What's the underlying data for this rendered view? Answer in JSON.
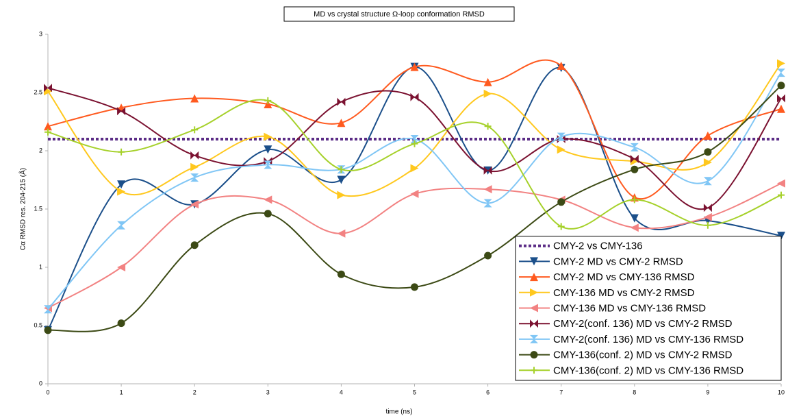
{
  "chart_data": {
    "type": "line",
    "smooth": true,
    "title": "MD vs crystal structure Ω-loop conformation RMSD",
    "xlabel": "time (ns)",
    "ylabel": "Cα RMSD res. 204-215 (Å)",
    "x": [
      0,
      1,
      2,
      3,
      4,
      5,
      6,
      7,
      8,
      9,
      10
    ],
    "xlim": [
      0,
      10
    ],
    "xticks": [
      0,
      1,
      2,
      3,
      4,
      5,
      6,
      7,
      8,
      9,
      10
    ],
    "ylim": [
      0,
      3
    ],
    "yticks": [
      0,
      0.5,
      1,
      1.5,
      2,
      2.5,
      3
    ],
    "grid": false,
    "legend": "lower right",
    "series": [
      {
        "name": "CMY-2 vs CMY-136",
        "color": "#5b2c86",
        "line_style": "dotted",
        "marker": "none",
        "values": [
          2.1,
          2.1,
          2.1,
          2.1,
          2.1,
          2.1,
          2.1,
          2.1,
          2.1,
          2.1,
          2.1
        ]
      },
      {
        "name": "CMY-2 MD vs CMY-2 RMSD",
        "color": "#1b4f8a",
        "line_style": "solid",
        "marker": "triangle-down",
        "values": [
          0.46,
          1.71,
          1.54,
          2.01,
          1.75,
          2.72,
          1.83,
          2.71,
          1.42,
          1.4,
          1.27
        ]
      },
      {
        "name": "CMY-2 MD vs CMY-136 RMSD",
        "color": "#ff5a1f",
        "line_style": "solid",
        "marker": "triangle-up",
        "values": [
          2.21,
          2.37,
          2.45,
          2.4,
          2.24,
          2.72,
          2.59,
          2.73,
          1.6,
          2.13,
          2.36
        ]
      },
      {
        "name": "CMY-136 MD vs CMY-2 RMSD",
        "color": "#ffc81e",
        "line_style": "solid",
        "marker": "triangle-right",
        "values": [
          2.51,
          1.65,
          1.86,
          2.12,
          1.62,
          1.85,
          2.49,
          2.01,
          1.91,
          1.9,
          2.75
        ]
      },
      {
        "name": "CMY-136 MD vs CMY-136 RMSD",
        "color": "#f28282",
        "line_style": "solid",
        "marker": "triangle-left",
        "values": [
          0.65,
          1.0,
          1.54,
          1.58,
          1.29,
          1.63,
          1.67,
          1.58,
          1.34,
          1.43,
          1.72
        ]
      },
      {
        "name": "CMY-2(conf. 136) MD vs CMY-2 RMSD",
        "color": "#7b1231",
        "line_style": "solid",
        "marker": "bowtie",
        "values": [
          2.54,
          2.34,
          1.96,
          1.91,
          2.42,
          2.46,
          1.83,
          2.1,
          1.93,
          1.51,
          2.45
        ]
      },
      {
        "name": "CMY-2(conf. 136) MD vs CMY-136 RMSD",
        "color": "#80c6f5",
        "line_style": "solid",
        "marker": "hourglass",
        "values": [
          0.64,
          1.36,
          1.77,
          1.88,
          1.84,
          2.1,
          1.55,
          2.12,
          2.03,
          1.74,
          2.67
        ]
      },
      {
        "name": "CMY-136(conf. 2) MD vs CMY-2 RMSD",
        "color": "#3c4a15",
        "line_style": "solid",
        "marker": "circle",
        "values": [
          0.46,
          0.52,
          1.19,
          1.46,
          0.94,
          0.83,
          1.1,
          1.56,
          1.84,
          1.99,
          2.56
        ]
      },
      {
        "name": "CMY-136(conf. 2) MD vs CMY-136 RMSD",
        "color": "#a6d12b",
        "line_style": "solid",
        "marker": "plus",
        "values": [
          2.16,
          1.99,
          2.18,
          2.43,
          1.84,
          2.06,
          2.21,
          1.35,
          1.58,
          1.36,
          1.62
        ]
      }
    ]
  }
}
